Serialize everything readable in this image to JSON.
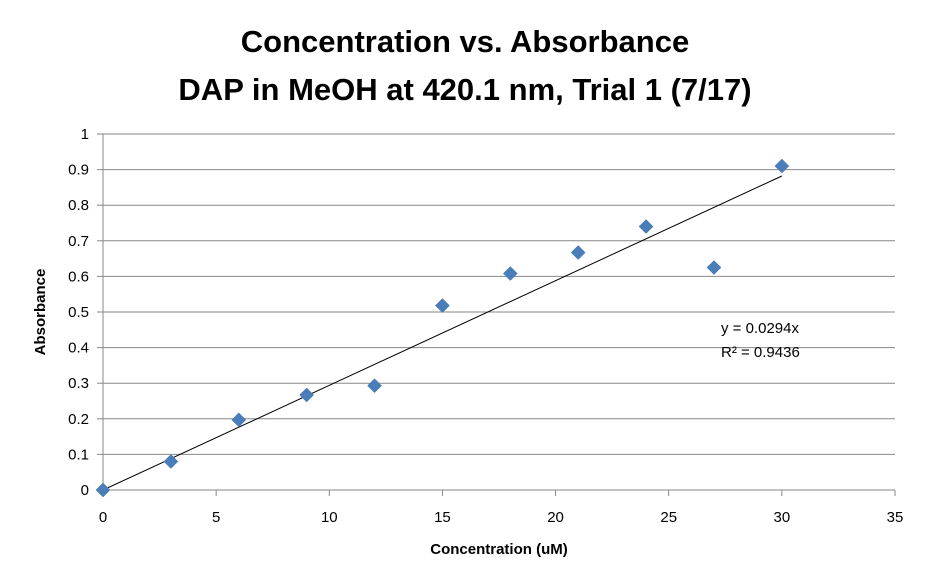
{
  "chart_data": {
    "type": "scatter",
    "title_line1": "Concentration vs. Absorbance",
    "title_line2": "DAP in MeOH at 420.1 nm, Trial 1 (7/17)",
    "xlabel": "Concentration (uM)",
    "ylabel": "Absorbance",
    "xlim": [
      0,
      35
    ],
    "ylim": [
      0,
      1
    ],
    "x_ticks": [
      0,
      5,
      10,
      15,
      20,
      25,
      30,
      35
    ],
    "y_ticks": [
      0,
      0.1,
      0.2,
      0.3,
      0.4,
      0.5,
      0.6,
      0.7,
      0.8,
      0.9,
      1
    ],
    "x_tick_labels": [
      "0",
      "5",
      "10",
      "15",
      "20",
      "25",
      "30",
      "35"
    ],
    "y_tick_labels": [
      "0",
      "0.1",
      "0.2",
      "0.3",
      "0.4",
      "0.5",
      "0.6",
      "0.7",
      "0.8",
      "0.9",
      "1"
    ],
    "grid": "horizontal",
    "legend": "none",
    "marker": "diamond",
    "marker_color": "#4a7ebb",
    "series": [
      {
        "x": [
          0,
          3,
          6,
          9,
          12,
          15,
          18,
          21,
          24,
          27,
          30
        ],
        "y": [
          0,
          0.08,
          0.197,
          0.267,
          0.293,
          0.518,
          0.608,
          0.667,
          0.74,
          0.625,
          0.91
        ]
      }
    ],
    "trendline": {
      "type": "linear",
      "slope": 0.0294,
      "intercept": 0,
      "x_range": [
        0,
        30
      ],
      "color": "#000000"
    },
    "annotations": {
      "equation": "y = 0.0294x",
      "r_squared": "R² = 0.9436"
    }
  }
}
